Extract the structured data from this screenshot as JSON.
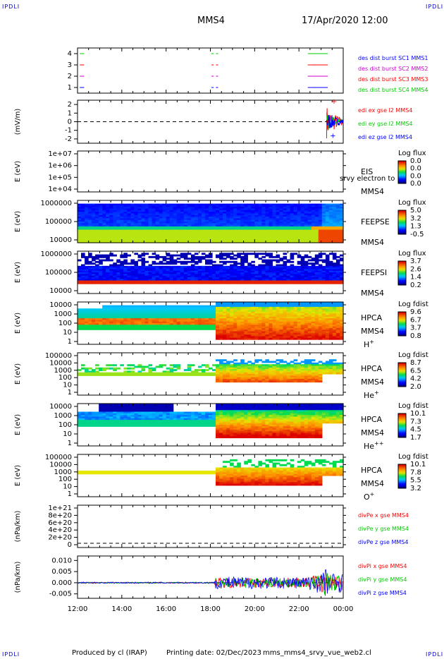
{
  "corner_labels": [
    "IPDLI",
    "IPDLI",
    "IPDLI",
    "IPDLI"
  ],
  "header": {
    "spacecraft": "MMS4",
    "datetime": "17/Apr/2020 12:00"
  },
  "footer": {
    "producer": "Produced by cl (IRAP)",
    "printing": "Printing date: 02/Dec/2023",
    "script": "mms_mms4_srvy_vue_web2.cl"
  },
  "colors": {
    "red": "#ff0000",
    "green": "#00cc00",
    "blue": "#0000ff",
    "magenta": "#cc00cc",
    "frame": "#000000"
  },
  "chart_data": [
    {
      "id": "burst",
      "type": "line",
      "ylim": [
        0.5,
        4.5
      ],
      "yticks": [
        "1",
        "2",
        "3",
        "4"
      ],
      "legend": [
        {
          "label": "des dist burst SC1 MMS1",
          "color": "#0000ff"
        },
        {
          "label": "des dist burst SC2 MMS2",
          "color": "#cc00cc"
        },
        {
          "label": "des dist burst SC3 MMS3",
          "color": "#ff0000"
        },
        {
          "label": "des dist burst SC4 MMS4",
          "color": "#00cc00"
        }
      ],
      "series": [
        {
          "level": 4,
          "color": "#00cc00",
          "segments": [
            [
              12.1,
              12.3
            ],
            [
              18.05,
              18.15
            ],
            [
              18.25,
              18.35
            ],
            [
              22.4,
              23.3
            ]
          ]
        },
        {
          "level": 3,
          "color": "#ff0000",
          "segments": [
            [
              12.1,
              12.3
            ],
            [
              18.05,
              18.15
            ],
            [
              18.25,
              18.35
            ],
            [
              22.4,
              23.3
            ]
          ]
        },
        {
          "level": 2,
          "color": "#cc00cc",
          "segments": [
            [
              12.1,
              12.3
            ],
            [
              18.05,
              18.15
            ],
            [
              18.25,
              18.35
            ],
            [
              22.4,
              23.3
            ]
          ]
        },
        {
          "level": 1,
          "color": "#0000ff",
          "segments": [
            [
              12.1,
              12.3
            ],
            [
              18.05,
              18.15
            ],
            [
              18.25,
              18.35
            ],
            [
              22.4,
              23.3
            ]
          ]
        }
      ]
    },
    {
      "id": "edi",
      "type": "line",
      "ylabel": "(mV/m)",
      "ylim": [
        -2.5,
        2.5
      ],
      "yticks": [
        "2",
        "1",
        "0",
        "-1",
        "-2"
      ],
      "legend": [
        {
          "label": "edi ex gse l2 MMS4",
          "color": "#ff0000"
        },
        {
          "label": "edi ey gse l2 MMS4",
          "color": "#00cc00"
        },
        {
          "label": "edi ez gse l2 MMS4",
          "color": "#0000ff"
        }
      ]
    },
    {
      "id": "eis",
      "type": "heatmap",
      "ylabel": "E (eV)",
      "yticks": [
        "1e+07",
        "1e+06",
        "1e+05",
        "1e+04"
      ],
      "instrument": "EIS",
      "spacecraft": "MMS4",
      "overlay": "srvy electron to",
      "colorbar": {
        "title": "Log flux",
        "ticks": [
          "0.0",
          "0.0",
          "0.0",
          "0.0"
        ]
      }
    },
    {
      "id": "feepse",
      "type": "heatmap",
      "ylabel": "E (eV)",
      "yticks": [
        "1000000",
        "100000",
        "10000"
      ],
      "instrument": "FEEPSE",
      "spacecraft": "MMS4",
      "colorbar": {
        "title": "Log flux",
        "ticks": [
          "5.0",
          "3.2",
          "1.3",
          "-0.5"
        ]
      }
    },
    {
      "id": "feepsi",
      "type": "heatmap",
      "ylabel": "E (eV)",
      "yticks": [
        "1000000",
        "100000",
        "10000"
      ],
      "instrument": "FEEPSI",
      "spacecraft": "MMS4",
      "colorbar": {
        "title": "Log flux",
        "ticks": [
          "3.7",
          "2.6",
          "1.4",
          "0.2"
        ]
      }
    },
    {
      "id": "hpca_h",
      "type": "heatmap",
      "ylabel": "E (eV)",
      "yticks": [
        "10000",
        "1000",
        "100",
        "10",
        "1"
      ],
      "instrument": "HPCA",
      "spacecraft": "MMS4",
      "species": "H",
      "charge": "+",
      "colorbar": {
        "title": "Log fdist",
        "ticks": [
          "9.6",
          "6.7",
          "3.7",
          "0.8"
        ]
      }
    },
    {
      "id": "hpca_he",
      "type": "heatmap",
      "ylabel": "E (eV)",
      "yticks": [
        "100000",
        "10000",
        "1000",
        "100",
        "10",
        "1"
      ],
      "instrument": "HPCA",
      "spacecraft": "MMS4",
      "species": "He",
      "charge": "+",
      "colorbar": {
        "title": "Log fdist",
        "ticks": [
          "8.7",
          "6.5",
          "4.2",
          "2.0"
        ]
      }
    },
    {
      "id": "hpca_hepp",
      "type": "heatmap",
      "ylabel": "E (eV)",
      "yticks": [
        "10000",
        "1000",
        "100",
        "10",
        "1"
      ],
      "instrument": "HPCA",
      "spacecraft": "MMS4",
      "species": "He",
      "charge": "++",
      "colorbar": {
        "title": "Log fdist",
        "ticks": [
          "10.1",
          "7.3",
          "4.5",
          "1.7"
        ]
      }
    },
    {
      "id": "hpca_o",
      "type": "heatmap",
      "ylabel": "E (eV)",
      "yticks": [
        "100000",
        "10000",
        "1000",
        "100",
        "10",
        "1"
      ],
      "instrument": "HPCA",
      "spacecraft": "MMS4",
      "species": "O",
      "charge": "+",
      "colorbar": {
        "title": "Log fdist",
        "ticks": [
          "10.1",
          "7.8",
          "5.5",
          "3.2"
        ]
      }
    },
    {
      "id": "divpe",
      "type": "line",
      "ylabel": "(nPa/km)",
      "yticks": [
        "1e+21",
        "8e+20",
        "6e+20",
        "4e+20",
        "2e+20",
        "0"
      ],
      "legend": [
        {
          "label": "divPe x gse MMS4",
          "color": "#ff0000"
        },
        {
          "label": "divPe y gse MMS4",
          "color": "#00cc00"
        },
        {
          "label": "divPe z gse MMS4",
          "color": "#0000ff"
        }
      ]
    },
    {
      "id": "divpi",
      "type": "line",
      "ylabel": "(nPa/km)",
      "ylim": [
        -0.007,
        0.012
      ],
      "yticks": [
        "0.010",
        "0.005",
        "0.000",
        "-0.005"
      ],
      "legend": [
        {
          "label": "divPi x gse MMS4",
          "color": "#ff0000"
        },
        {
          "label": "divPi y gse MMS4",
          "color": "#00cc00"
        },
        {
          "label": "divPi z gse MMS4",
          "color": "#0000ff"
        }
      ]
    }
  ],
  "time_axis": {
    "range_hours": [
      12,
      24
    ],
    "ticks": [
      "12:00",
      "14:00",
      "16:00",
      "18:00",
      "20:00",
      "22:00",
      "00:00"
    ]
  }
}
